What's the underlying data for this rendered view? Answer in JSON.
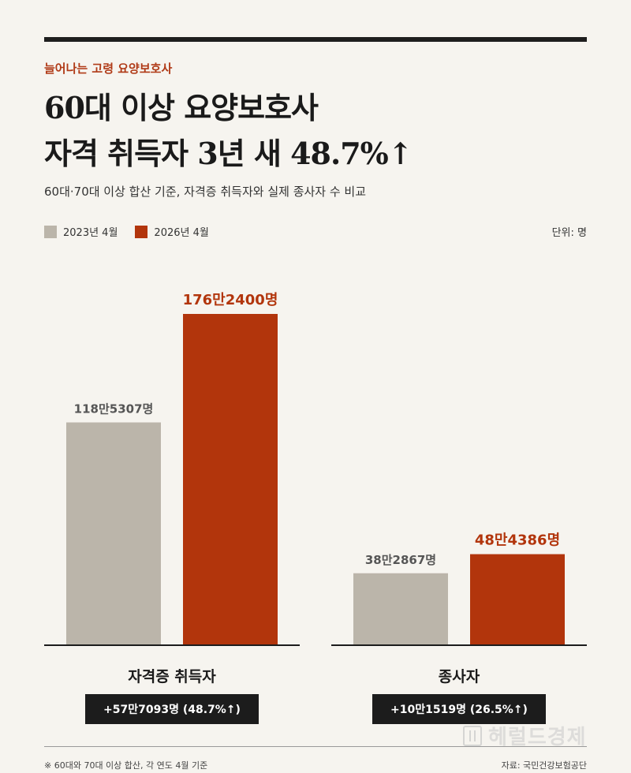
{
  "kicker": "늘어나는 고령 요양보호사",
  "title": [
    "60대 이상 요양보호사",
    "자격 취득자 3년 새 48.7%↑"
  ],
  "subtitle": "60대·70대 이상 합산 기준, 자격증 취득자와 실제 종사자 수 비교",
  "unit": "단위: 명",
  "colors": {
    "series_2023": "#bbb5aa",
    "series_2026": "#b2350c",
    "accent": "#b03a17",
    "label_2023": "#555555"
  },
  "chart_data": {
    "type": "bar",
    "categories": [
      "자격증 취득자",
      "종사자"
    ],
    "series": [
      {
        "name": "2023년 4월",
        "values": [
          1185307,
          382867
        ],
        "labels": [
          "118만5307명",
          "38만2867명"
        ]
      },
      {
        "name": "2026년 4월",
        "values": [
          1762400,
          484386
        ],
        "labels": [
          "176만2400명",
          "48만4386명"
        ]
      }
    ],
    "ylim": [
      0,
      2000000
    ],
    "legend_position": "top-left",
    "changes": [
      "+57만7093명 (48.7%↑)",
      "+10만1519명 (26.5%↑)"
    ]
  },
  "footnote": "※ 60대와 70대 이상 합산, 각 연도 4월 기준",
  "source": "자료: 국민건강보험공단",
  "watermark": "헤럴드경제"
}
